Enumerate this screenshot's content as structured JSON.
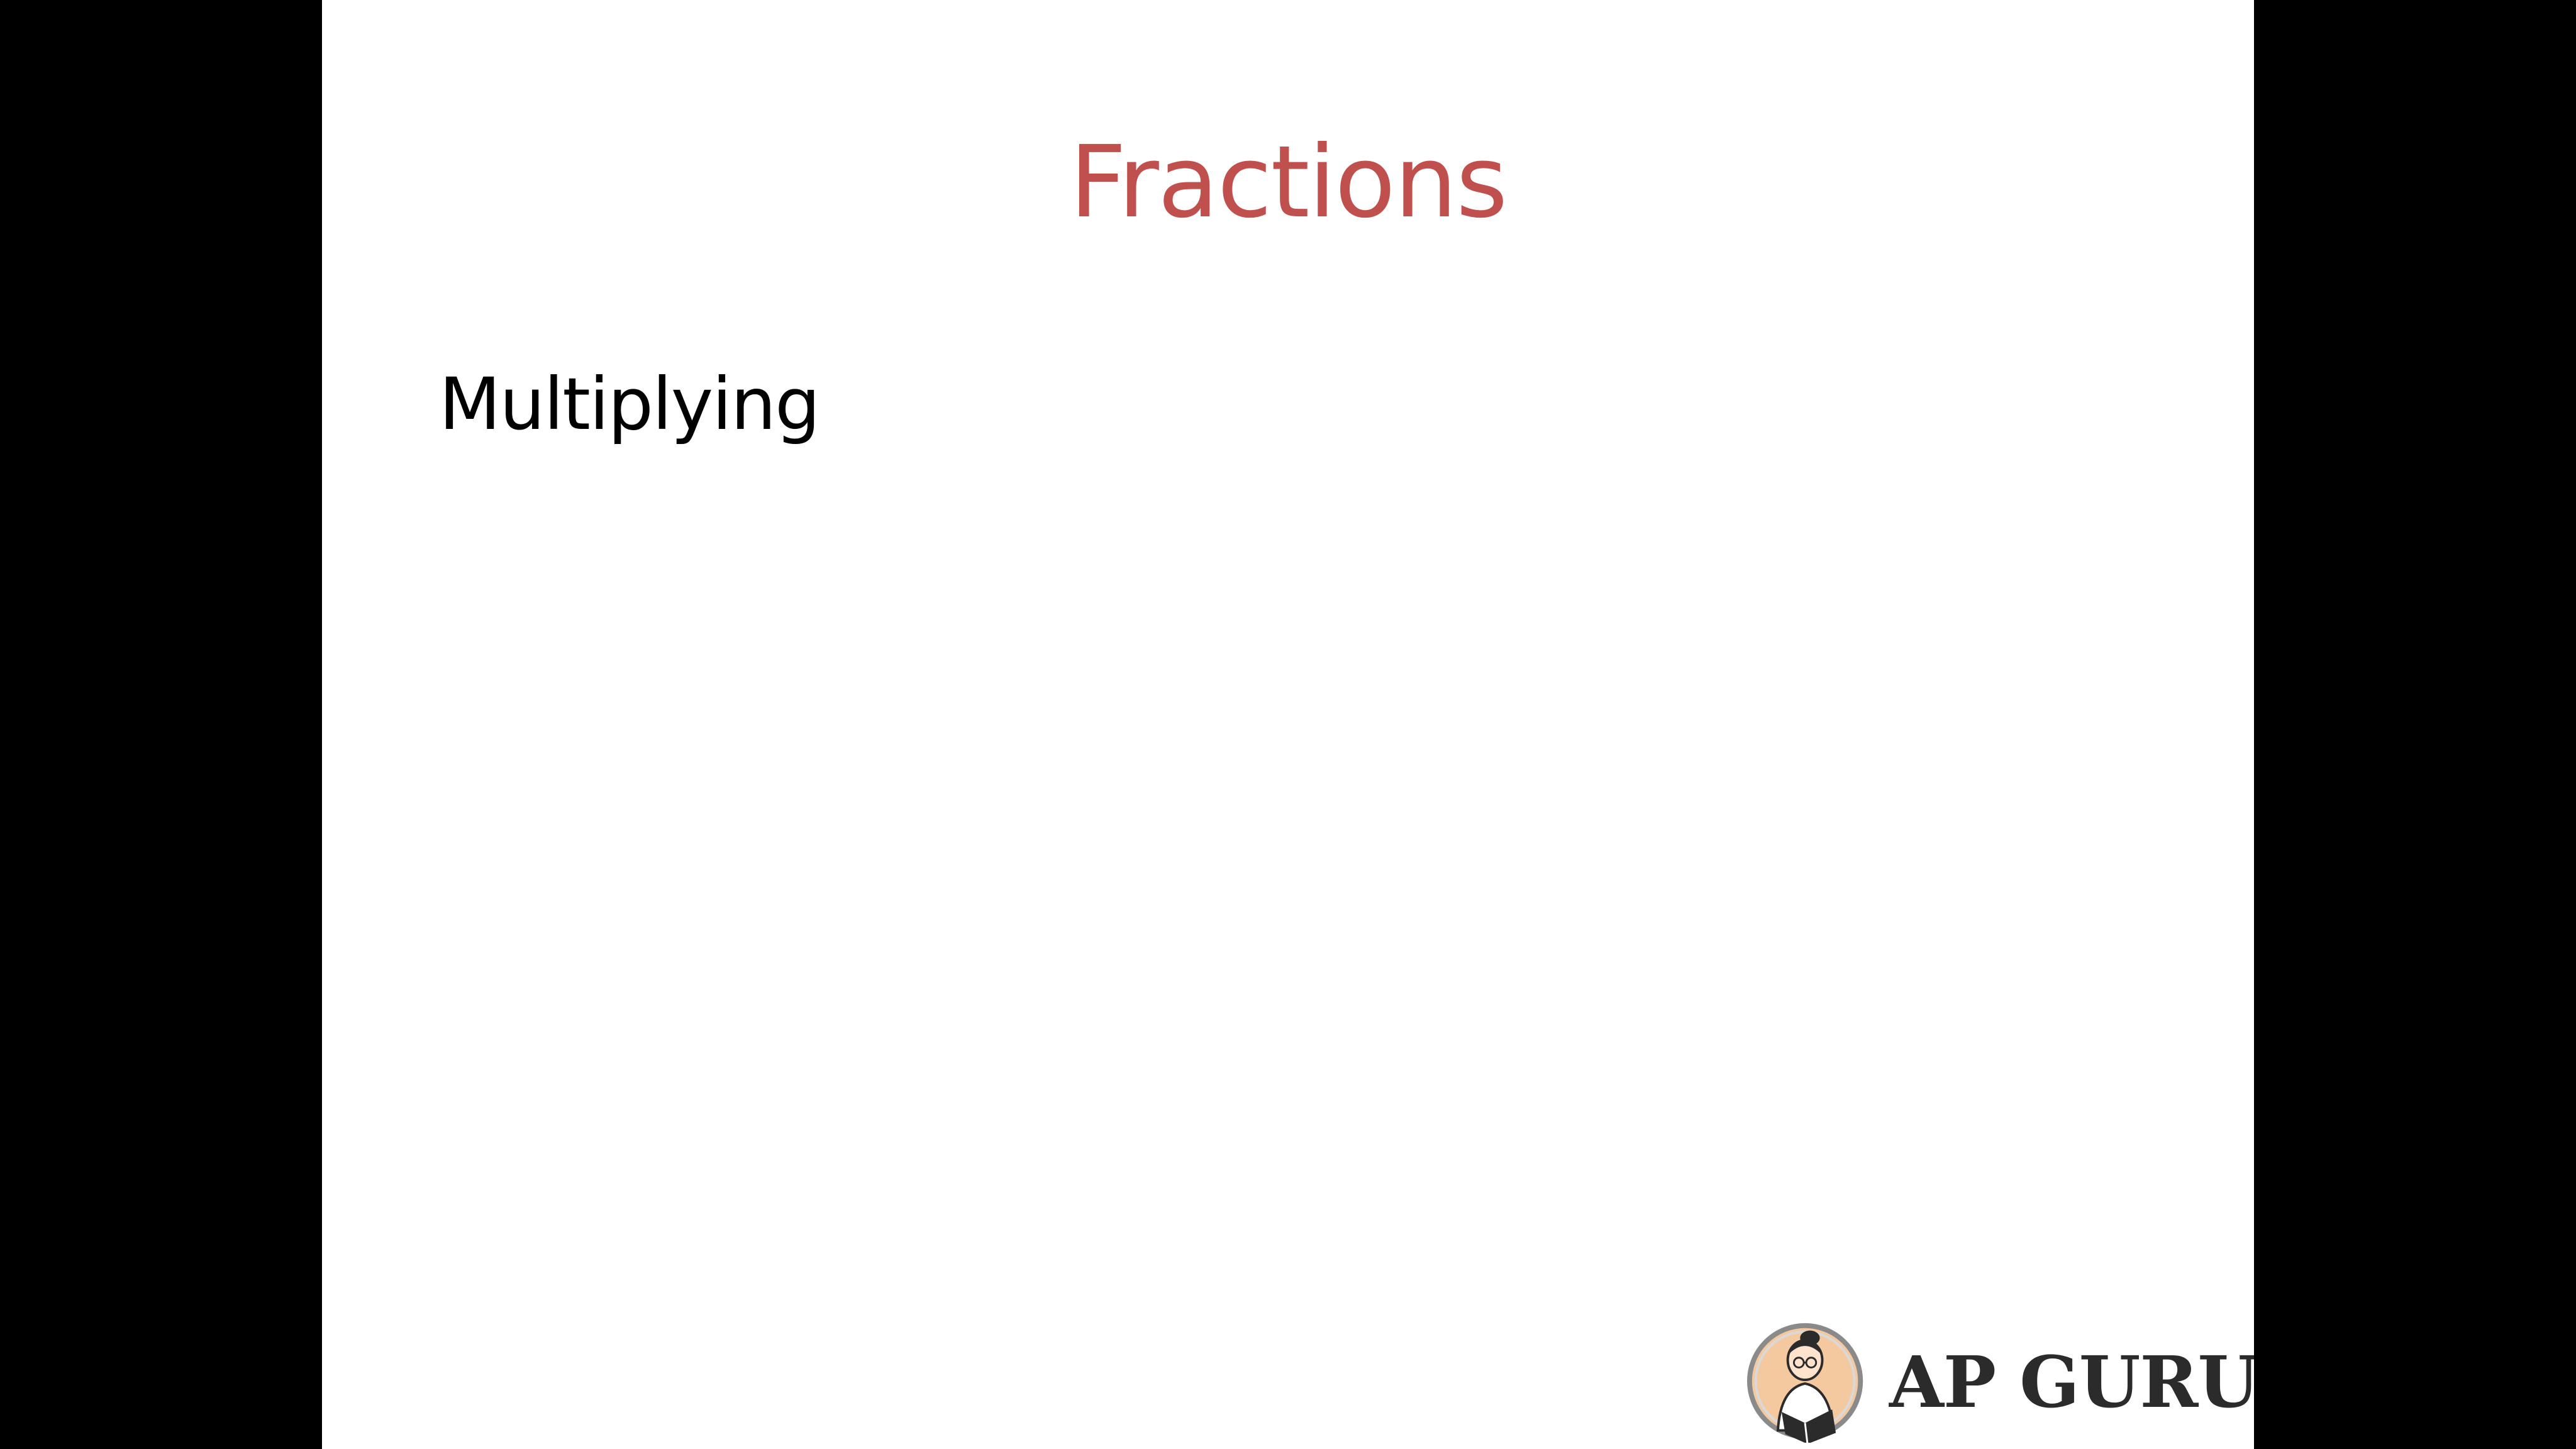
{
  "slide": {
    "title": "Fractions",
    "body_text": "Multiplying",
    "title_color": "#c0504d"
  },
  "logo": {
    "text": "AP GURU",
    "icon": "reading-person-logo-icon"
  }
}
